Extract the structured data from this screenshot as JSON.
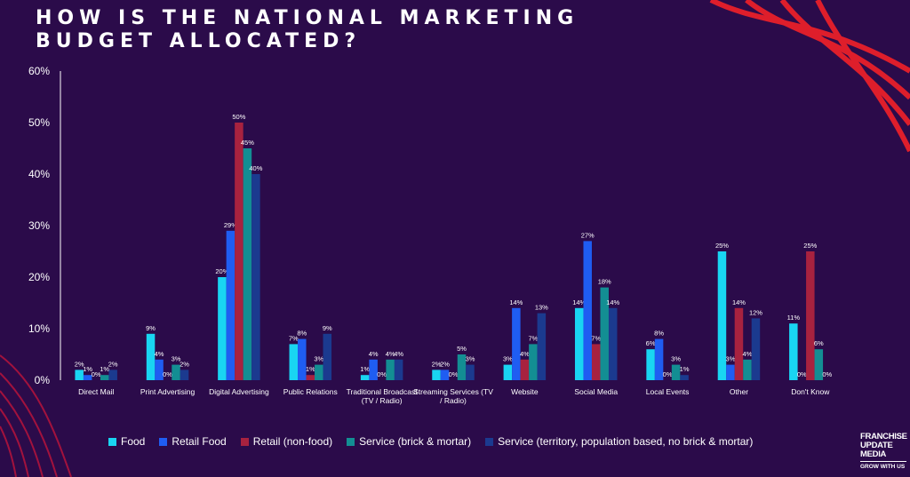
{
  "page": {
    "title": "HOW IS THE NATIONAL MARKETING BUDGET ALLOCATED?",
    "logo_text": "FRANCHISE UPDATE MEDIA",
    "logo_tagline": "GROW WITH US"
  },
  "colors": {
    "background": "#2b0b4a",
    "accent_red": "#e8202a"
  },
  "chart_data": {
    "type": "bar",
    "title": "HOW IS THE NATIONAL MARKETING BUDGET ALLOCATED?",
    "xlabel": "",
    "ylabel": "",
    "ylim": [
      0,
      60
    ],
    "yticks": [
      0,
      10,
      20,
      30,
      40,
      50,
      60
    ],
    "ytick_labels": [
      "0%",
      "10%",
      "20%",
      "30%",
      "40%",
      "50%",
      "60%"
    ],
    "grid": false,
    "legend_position": "bottom",
    "categories": [
      "Direct Mail",
      "Print Advertising",
      "Digital Advertising",
      "Public Relations",
      [
        "Traditional Broadcast",
        "(TV / Radio)"
      ],
      [
        "Streaming Services (TV",
        "/ Radio)"
      ],
      "Website",
      "Social Media",
      "Local Events",
      "Other",
      "Don't Know"
    ],
    "series": [
      {
        "name": "Food",
        "color": "#19d5f2",
        "values": [
          2,
          9,
          20,
          7,
          1,
          2,
          3,
          14,
          6,
          25,
          11
        ]
      },
      {
        "name": "Retail Food",
        "color": "#1f5df2",
        "values": [
          1,
          4,
          29,
          8,
          4,
          2,
          14,
          27,
          8,
          3,
          0
        ]
      },
      {
        "name": "Retail (non-food)",
        "color": "#a8223f",
        "values": [
          0,
          0,
          50,
          1,
          0,
          0,
          4,
          7,
          0,
          14,
          25
        ]
      },
      {
        "name": "Service (brick & mortar)",
        "color": "#138e93",
        "values": [
          1,
          3,
          45,
          3,
          4,
          5,
          7,
          18,
          3,
          4,
          6
        ]
      },
      {
        "name": "Service (territory, population based, no brick & mortar)",
        "color": "#1b3a8f",
        "values": [
          2,
          2,
          40,
          9,
          4,
          3,
          13,
          14,
          1,
          12,
          0
        ]
      }
    ],
    "data_labels": [
      [
        "2%",
        "1%",
        "0%",
        "1%",
        "2%"
      ],
      [
        "9%",
        "4%",
        "0%",
        "3%",
        "2%"
      ],
      [
        "20%",
        "29%",
        "50%",
        "45%",
        "40%"
      ],
      [
        "7%",
        "8%",
        "1%",
        "3%",
        "9%"
      ],
      [
        "1%",
        "4%",
        "0%",
        "4%",
        "4%"
      ],
      [
        "2%",
        "2%",
        "0%",
        "5%",
        "3%"
      ],
      [
        "3%",
        "14%",
        "4%",
        "7%",
        "13%"
      ],
      [
        "14%",
        "27%",
        "7%",
        "18%",
        "14%"
      ],
      [
        "6%",
        "8%",
        "0%",
        "3%",
        "1%"
      ],
      [
        "25%",
        "3%",
        "14%",
        "4%",
        "12%"
      ],
      [
        "11%",
        "0%",
        "25%",
        "6%",
        "0%"
      ]
    ]
  }
}
